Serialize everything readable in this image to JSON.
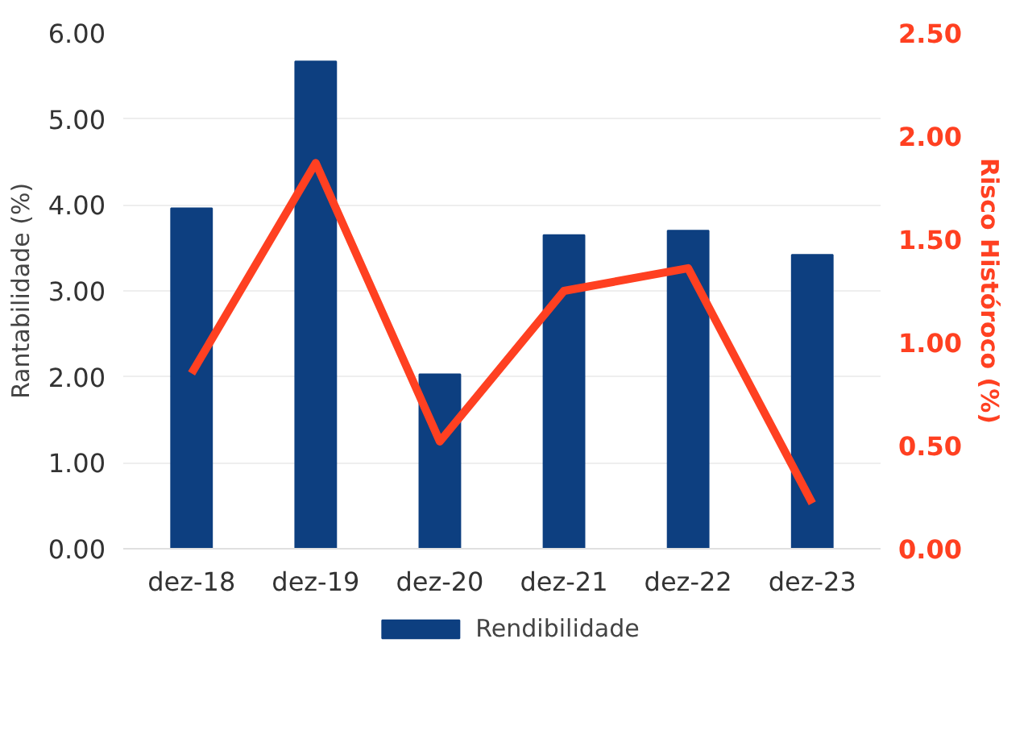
{
  "chart_data": {
    "type": "bar",
    "ylabel": "Rantabilidade (%)",
    "y2label": "Risco Históroco (%)",
    "categories": [
      "dez-18",
      "dez-19",
      "dez-20",
      "dez-21",
      "dez-22",
      "dez-23"
    ],
    "series": [
      {
        "name": "Rendibilidade",
        "color": "#0d3f80",
        "values": [
          3.96,
          5.67,
          2.03,
          3.65,
          3.7,
          3.42
        ]
      },
      {
        "type": "line",
        "axis": "y2",
        "color": "#ff4021",
        "values": [
          0.85,
          1.87,
          0.52,
          1.25,
          1.36,
          0.22
        ]
      }
    ],
    "ylim": [
      0,
      6
    ],
    "yticks": [
      {
        "value": 0,
        "label": "0.00"
      },
      {
        "value": 1,
        "label": "1.00"
      },
      {
        "value": 2,
        "label": "2.00"
      },
      {
        "value": 3,
        "label": "3.00"
      },
      {
        "value": 4,
        "label": "4.00"
      },
      {
        "value": 5,
        "label": "5.00"
      },
      {
        "value": 6,
        "label": "6.00"
      }
    ],
    "y2lim": [
      0,
      2.5
    ],
    "y2ticks": [
      {
        "value": 0,
        "label": "0.00"
      },
      {
        "value": 0.5,
        "label": "0.50"
      },
      {
        "value": 1,
        "label": "1.00"
      },
      {
        "value": 1.5,
        "label": "1.50"
      },
      {
        "value": 2,
        "label": "2.00"
      },
      {
        "value": 2.5,
        "label": "2.50"
      }
    ],
    "grid": "y",
    "legend": "bottom"
  }
}
